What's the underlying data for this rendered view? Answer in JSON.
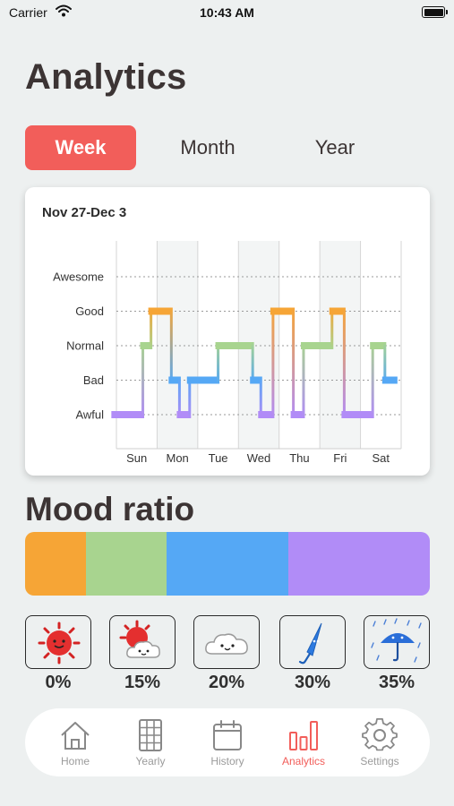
{
  "status_bar": {
    "carrier": "Carrier",
    "time": "10:43 AM"
  },
  "page": {
    "title": "Analytics"
  },
  "tabs": [
    {
      "label": "Week",
      "active": true
    },
    {
      "label": "Month",
      "active": false
    },
    {
      "label": "Year",
      "active": false
    }
  ],
  "chart_data": {
    "type": "line",
    "title": "Nov 27-Dec 3",
    "categories": [
      "Sun",
      "Mon",
      "Tue",
      "Wed",
      "Thu",
      "Fri",
      "Sat"
    ],
    "y_levels": [
      "Awful",
      "Bad",
      "Normal",
      "Good",
      "Awesome"
    ],
    "level_colors": {
      "Good": "#f6a536",
      "Normal": "#a8d48f",
      "Bad": "#55a8f5",
      "Awful": "#b18cf7"
    },
    "series": [
      {
        "values": [
          [
            "Sun",
            0.25,
            "Awful"
          ],
          [
            "Sun",
            0.65,
            "Normal"
          ],
          [
            "Sun",
            0.85,
            "Good"
          ],
          [
            "Mon",
            0.35,
            "Bad"
          ],
          [
            "Mon",
            0.55,
            "Awful"
          ],
          [
            "Mon",
            0.8,
            "Bad"
          ],
          [
            "Tue",
            0.5,
            "Normal"
          ],
          [
            "Wed",
            0.35,
            "Bad"
          ],
          [
            "Wed",
            0.55,
            "Awful"
          ],
          [
            "Wed",
            0.85,
            "Good"
          ],
          [
            "Thu",
            0.35,
            "Awful"
          ],
          [
            "Thu",
            0.6,
            "Normal"
          ],
          [
            "Fri",
            0.3,
            "Good"
          ],
          [
            "Fri",
            0.6,
            "Awful"
          ],
          [
            "Sat",
            0.3,
            "Normal"
          ],
          [
            "Sat",
            0.6,
            "Bad"
          ]
        ]
      }
    ],
    "grid": true
  },
  "mood_ratio": {
    "title": "Mood ratio",
    "segments": [
      {
        "level": "Good",
        "value": 15,
        "color": "#f6a536"
      },
      {
        "level": "Normal",
        "value": 20,
        "color": "#a8d48f"
      },
      {
        "level": "Bad",
        "value": 30,
        "color": "#55a8f5"
      },
      {
        "level": "Awful",
        "value": 35,
        "color": "#b18cf7"
      }
    ]
  },
  "moods": [
    {
      "icon": "sun-icon",
      "bg": "#f8d7d6",
      "pct": "0%"
    },
    {
      "icon": "sun-cloud-icon",
      "bg": "#fbe3c9",
      "pct": "15%"
    },
    {
      "icon": "cloud-icon",
      "bg": "#e2f0dc",
      "pct": "20%"
    },
    {
      "icon": "umbrella-closed-icon",
      "bg": "#d9ebfb",
      "pct": "30%"
    },
    {
      "icon": "umbrella-rain-icon",
      "bg": "#e7dcfb",
      "pct": "35%"
    }
  ],
  "tabbar": [
    {
      "icon": "home-icon",
      "label": "Home",
      "active": false
    },
    {
      "icon": "calendar-grid-icon",
      "label": "Yearly",
      "active": false
    },
    {
      "icon": "calendar-icon",
      "label": "History",
      "active": false
    },
    {
      "icon": "bar-chart-icon",
      "label": "Analytics",
      "active": true
    },
    {
      "icon": "gear-icon",
      "label": "Settings",
      "active": false
    }
  ],
  "colors": {
    "accent": "#f25e5a",
    "background": "#edf0f0"
  }
}
